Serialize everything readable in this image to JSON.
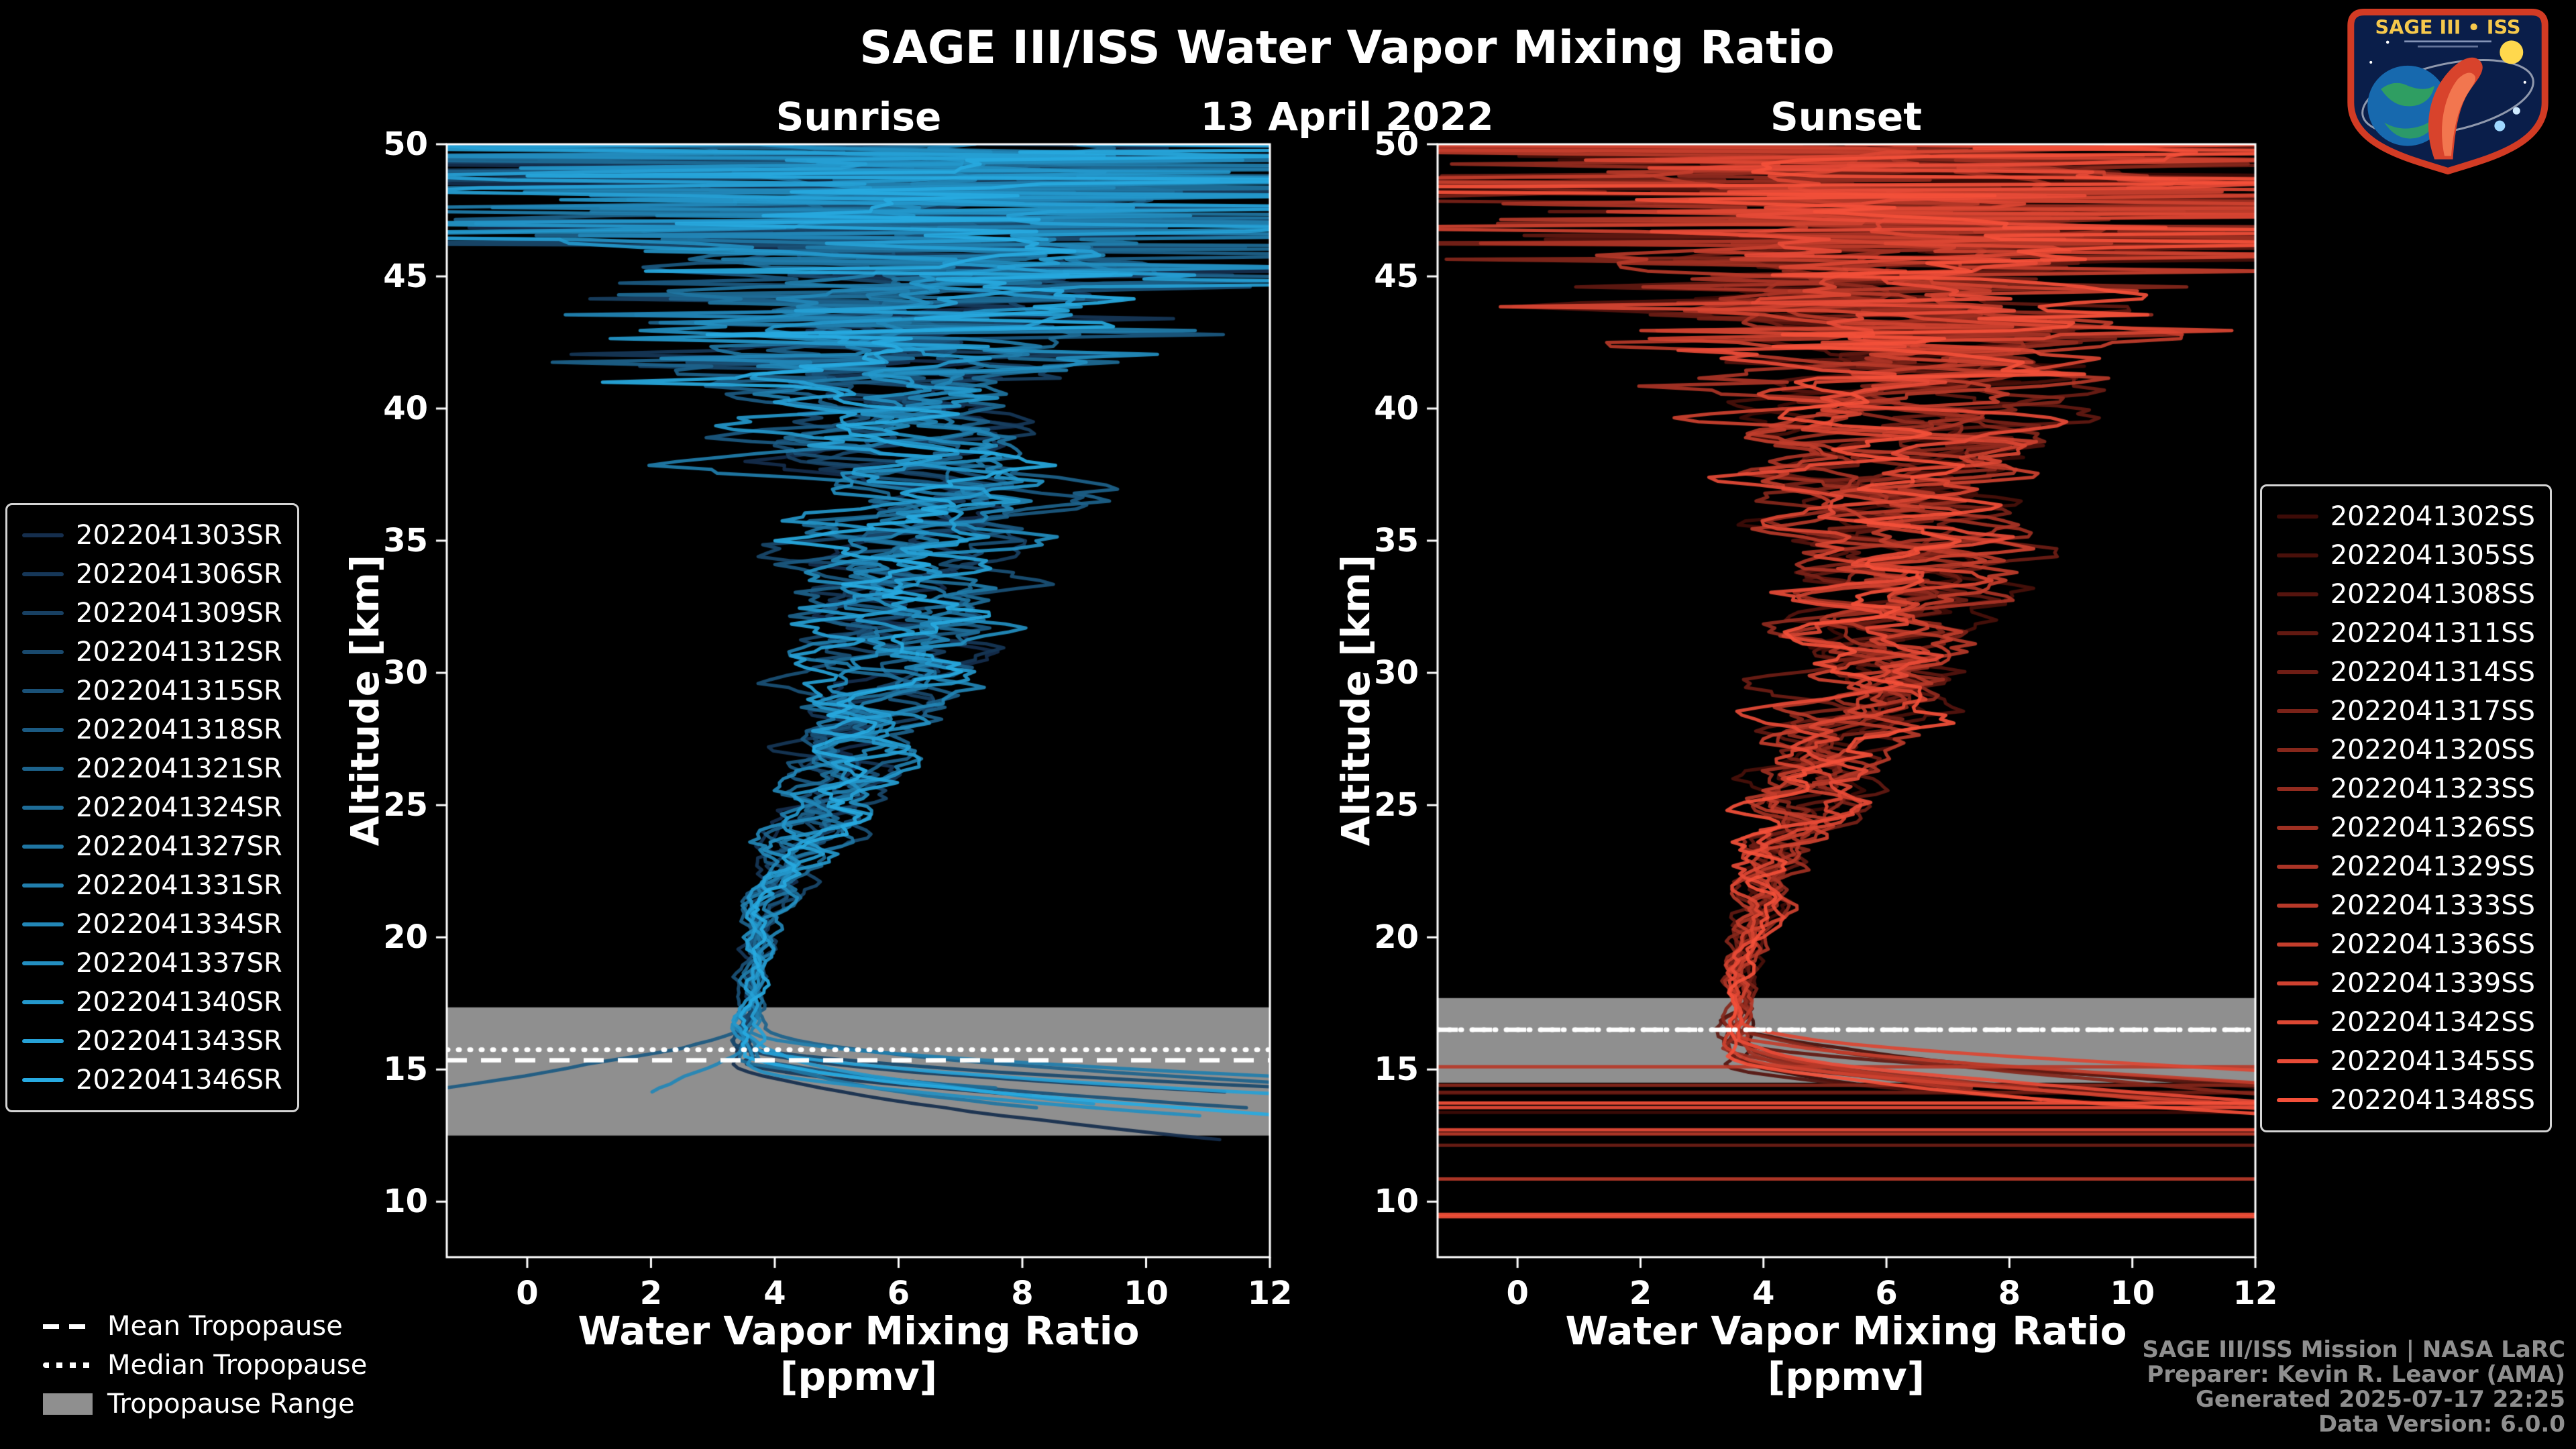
{
  "header": {
    "title": "SAGE III/ISS Water Vapor Mixing Ratio",
    "date": "13 April 2022"
  },
  "chart_data": {
    "type": "line",
    "title": "SAGE III/ISS Water Vapor Mixing Ratio",
    "subtitle": "13 April 2022",
    "xlabel": "Water Vapor Mixing Ratio",
    "xlabel_units": "[ppmv]",
    "ylabel": "Altitude [km]",
    "xlim": [
      -1.3,
      12
    ],
    "ylim": [
      7.9,
      50
    ],
    "xticks": [
      0,
      2,
      4,
      6,
      8,
      10,
      12
    ],
    "yticks": [
      10,
      15,
      20,
      25,
      30,
      35,
      40,
      45,
      50
    ],
    "grid": false,
    "legend_positions": [
      "outside-left",
      "outside-right"
    ],
    "approx_mean_profile": {
      "altitude_km": [
        13,
        15,
        17,
        20,
        25,
        30,
        35,
        40,
        45,
        50
      ],
      "ppmv": [
        10,
        5.5,
        3.6,
        3.8,
        4.7,
        5.8,
        6.2,
        6.3,
        6.3,
        6.3
      ],
      "note": "profiles tighten to ~3.5-4 ppmv near the tropopause, spread increases with altitude, near-full-width noise above 45 km, sharp increase toward high ppmv below the tropopause"
    },
    "panels": [
      {
        "id": "sunrise",
        "title": "Sunrise",
        "color_dark": "#152e4d",
        "color_bright": "#27aae1",
        "series": [
          "2022041303SR",
          "2022041306SR",
          "2022041309SR",
          "2022041312SR",
          "2022041315SR",
          "2022041318SR",
          "2022041321SR",
          "2022041324SR",
          "2022041327SR",
          "2022041331SR",
          "2022041334SR",
          "2022041337SR",
          "2022041340SR",
          "2022041343SR",
          "2022041346SR"
        ],
        "tropopause": {
          "mean_km": 15.35,
          "median_km": 15.75,
          "range_km": [
            12.5,
            17.35
          ]
        },
        "low_altitude_stripes": false
      },
      {
        "id": "sunset",
        "title": "Sunset",
        "color_dark": "#3d0b07",
        "color_bright": "#f4503a",
        "series": [
          "2022041302SS",
          "2022041305SS",
          "2022041308SS",
          "2022041311SS",
          "2022041314SS",
          "2022041317SS",
          "2022041320SS",
          "2022041323SS",
          "2022041326SS",
          "2022041329SS",
          "2022041333SS",
          "2022041336SS",
          "2022041339SS",
          "2022041342SS",
          "2022041345SS",
          "2022041348SS"
        ],
        "tropopause": {
          "mean_km": 16.5,
          "median_km": 16.5,
          "range_km": [
            14.5,
            17.7
          ]
        },
        "low_altitude_stripes": true
      }
    ]
  },
  "tropopause_legend": {
    "mean": "Mean Tropopause",
    "median": "Median Tropopause",
    "range": "Tropopause Range"
  },
  "attribution": {
    "line1": "SAGE III/ISS Mission | NASA LaRC",
    "line2": "Preparer: Kevin R. Leavor (AMA)",
    "line3": "Generated 2025-07-17 22:25",
    "line4": "Data Version: 6.0.0"
  },
  "logo": {
    "title": "SAGE III • ISS"
  }
}
